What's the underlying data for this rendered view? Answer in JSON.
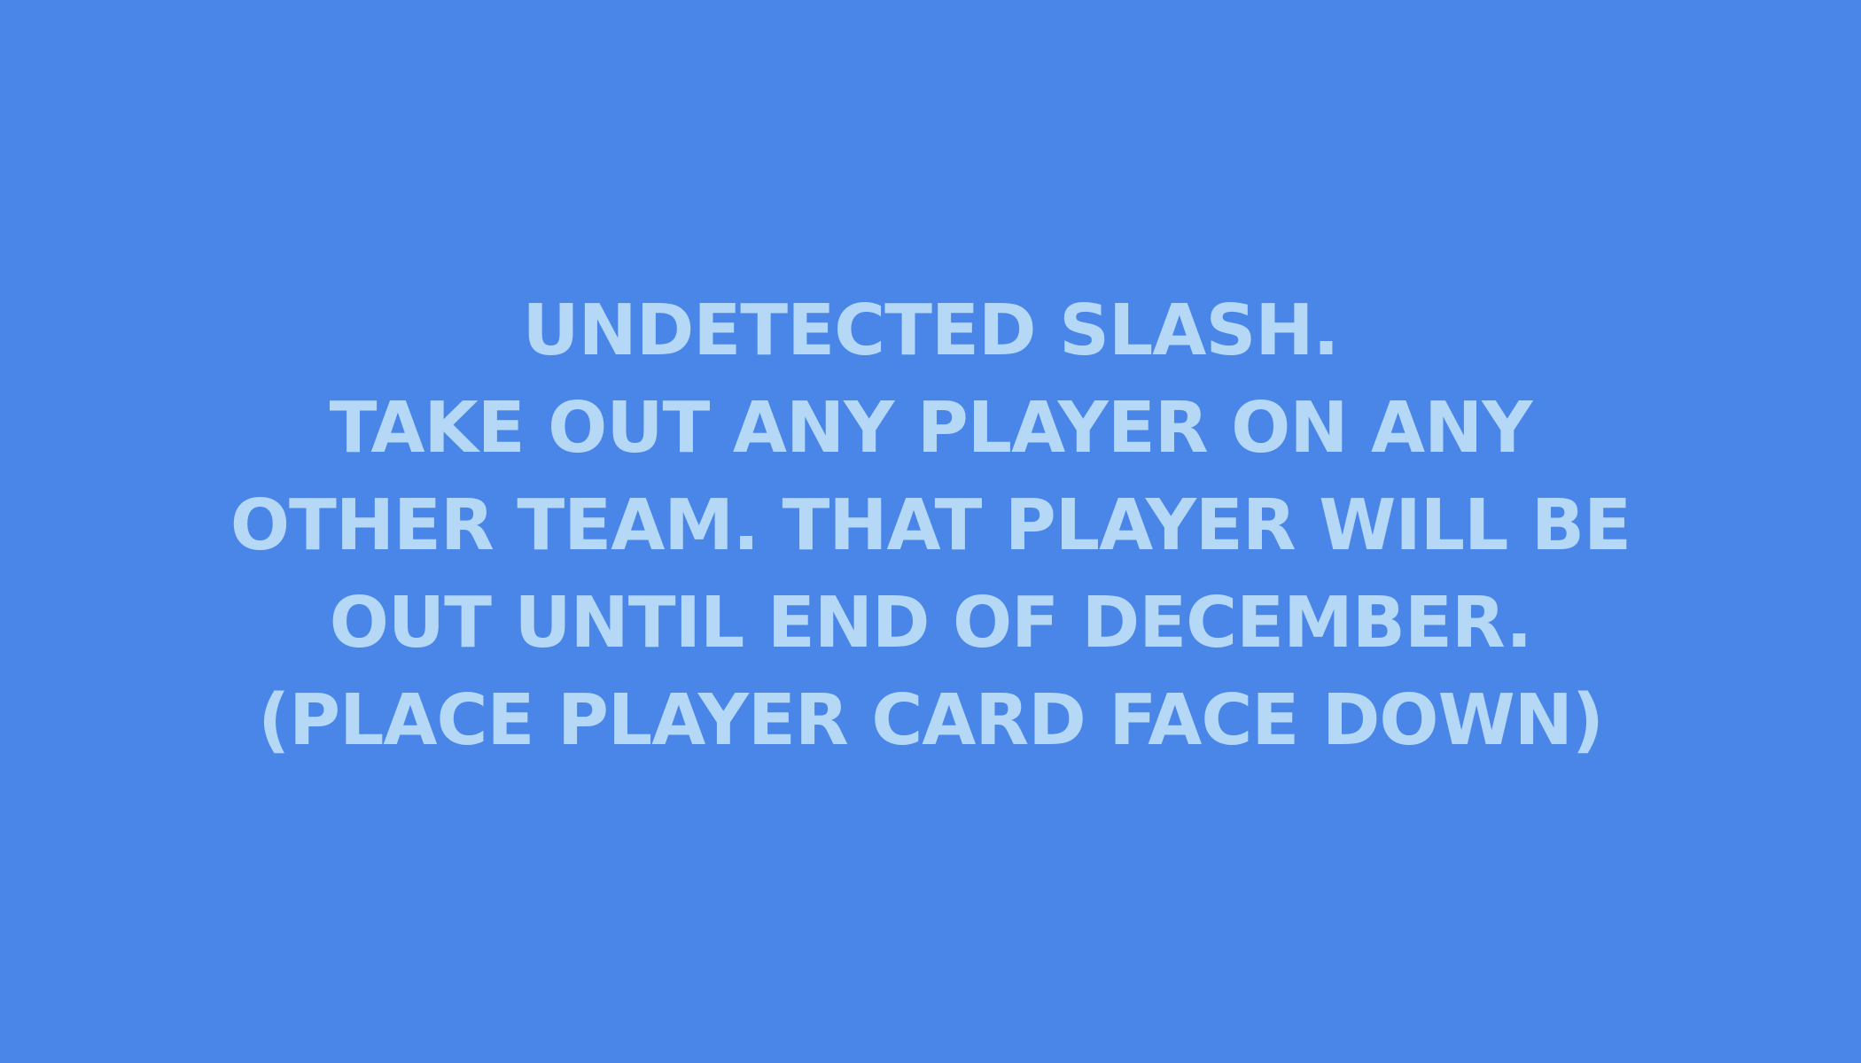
{
  "card": {
    "background_color": "#4a86e8",
    "text_color": "#b4d8f6",
    "lines": [
      "UNDETECTED SLASH.",
      "TAKE OUT ANY PLAYER ON ANY",
      "OTHER TEAM. THAT PLAYER WILL BE",
      "OUT UNTIL END OF DECEMBER.",
      "(PLACE PLAYER CARD FACE DOWN)"
    ]
  }
}
